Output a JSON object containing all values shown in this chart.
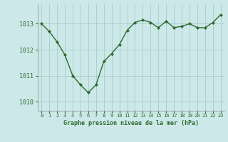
{
  "x": [
    0,
    1,
    2,
    3,
    4,
    5,
    6,
    7,
    8,
    9,
    10,
    11,
    12,
    13,
    14,
    15,
    16,
    17,
    18,
    19,
    20,
    21,
    22,
    23
  ],
  "y": [
    1013.0,
    1012.7,
    1012.3,
    1011.8,
    1011.0,
    1010.65,
    1010.35,
    1010.65,
    1011.55,
    1011.85,
    1012.2,
    1012.75,
    1013.05,
    1013.15,
    1013.05,
    1012.85,
    1013.1,
    1012.85,
    1012.9,
    1013.0,
    1012.85,
    1012.85,
    1013.05,
    1013.35
  ],
  "line_color": "#2d6a2d",
  "marker_color": "#2d6a2d",
  "bg_color": "#cce8e8",
  "grid_color": "#aacccc",
  "xlabel": "Graphe pression niveau de la mer (hPa)",
  "xlabel_color": "#2d6a2d",
  "tick_color": "#2d6a2d",
  "ylabel_ticks": [
    1010,
    1011,
    1012,
    1013
  ],
  "ylim": [
    1009.65,
    1013.75
  ],
  "xlim": [
    -0.5,
    23.5
  ]
}
